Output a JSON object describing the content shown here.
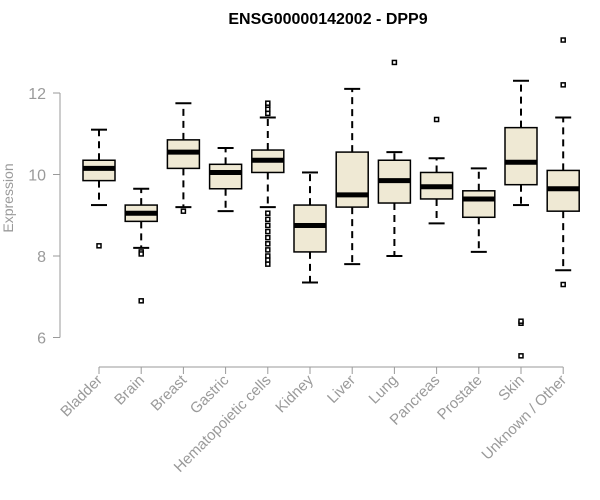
{
  "chart_data": {
    "type": "boxplot",
    "title": "ENSG00000142002 - DPP9",
    "xlabel": "",
    "ylabel": "Expression",
    "ylim": [
      5.5,
      13.3
    ],
    "yticks": [
      6,
      8,
      10,
      12
    ],
    "box_fill": "#efe9d4",
    "categories": [
      "Bladder",
      "Brain",
      "Breast",
      "Gastric",
      "Hematopoietic cells",
      "Kidney",
      "Liver",
      "Lung",
      "Pancreas",
      "Prostate",
      "Skin",
      "Unknown / Other"
    ],
    "boxes": [
      {
        "whisker_low": 9.25,
        "q1": 9.85,
        "median": 10.15,
        "q3": 10.35,
        "whisker_high": 11.1,
        "outliers": [
          8.25
        ]
      },
      {
        "whisker_low": 8.2,
        "q1": 8.85,
        "median": 9.05,
        "q3": 9.25,
        "whisker_high": 9.65,
        "outliers": [
          8.1,
          8.05,
          6.9
        ]
      },
      {
        "whisker_low": 9.2,
        "q1": 10.15,
        "median": 10.55,
        "q3": 10.85,
        "whisker_high": 11.75,
        "outliers": [
          9.1
        ]
      },
      {
        "whisker_low": 9.1,
        "q1": 9.65,
        "median": 10.05,
        "q3": 10.25,
        "whisker_high": 10.65,
        "outliers": []
      },
      {
        "whisker_low": 9.2,
        "q1": 10.05,
        "median": 10.35,
        "q3": 10.6,
        "whisker_high": 11.4,
        "outliers": [
          11.5,
          11.6,
          11.7,
          11.75,
          9.05,
          8.9,
          8.75,
          8.6,
          8.45,
          8.3,
          8.15,
          8.0,
          7.9,
          7.8
        ]
      },
      {
        "whisker_low": 7.35,
        "q1": 8.1,
        "median": 8.75,
        "q3": 9.25,
        "whisker_high": 10.05,
        "outliers": []
      },
      {
        "whisker_low": 7.8,
        "q1": 9.2,
        "median": 9.5,
        "q3": 10.55,
        "whisker_high": 12.1,
        "outliers": []
      },
      {
        "whisker_low": 8.0,
        "q1": 9.3,
        "median": 9.85,
        "q3": 10.35,
        "whisker_high": 10.55,
        "outliers": [
          12.75
        ]
      },
      {
        "whisker_low": 8.8,
        "q1": 9.4,
        "median": 9.7,
        "q3": 10.05,
        "whisker_high": 10.4,
        "outliers": [
          11.35
        ]
      },
      {
        "whisker_low": 8.1,
        "q1": 8.95,
        "median": 9.4,
        "q3": 9.6,
        "whisker_high": 10.15,
        "outliers": []
      },
      {
        "whisker_low": 9.25,
        "q1": 9.75,
        "median": 10.3,
        "q3": 11.15,
        "whisker_high": 12.3,
        "outliers": [
          6.35,
          6.4,
          5.55
        ]
      },
      {
        "whisker_low": 7.65,
        "q1": 9.1,
        "median": 9.65,
        "q3": 10.1,
        "whisker_high": 11.4,
        "outliers": [
          13.3,
          12.2,
          7.3
        ]
      }
    ]
  }
}
